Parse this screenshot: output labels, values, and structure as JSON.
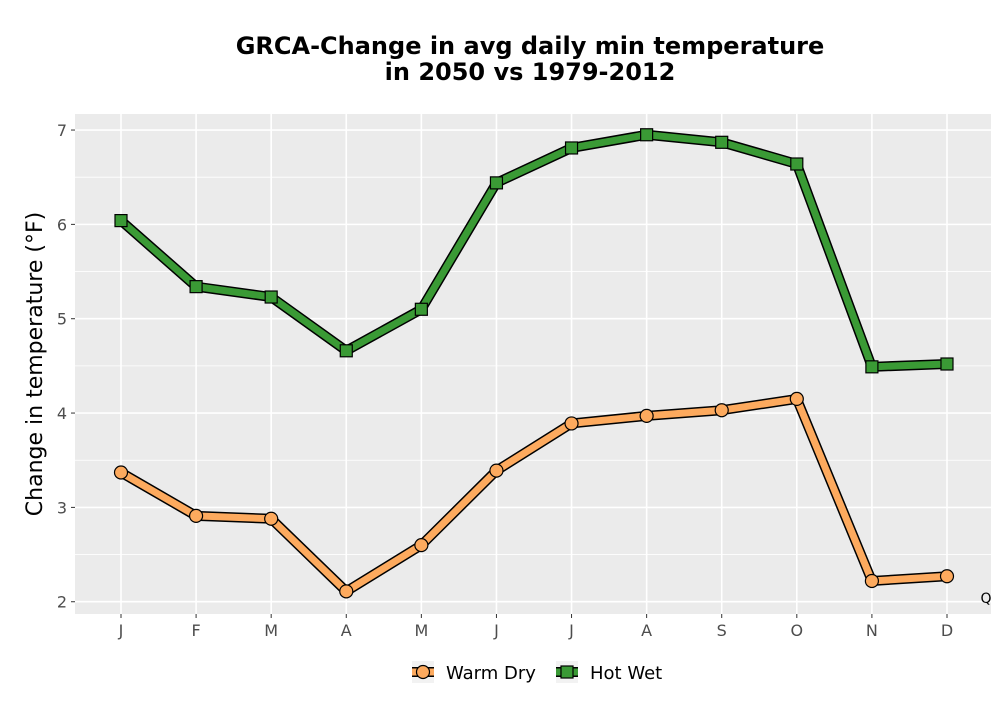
{
  "chart_data": {
    "type": "line",
    "title_line1": "GRCA-Change in avg daily min temperature",
    "title_line2": "in 2050 vs 1979-2012",
    "xlabel": "",
    "ylabel": "Change in temperature (°F)",
    "categories": [
      "J",
      "F",
      "M",
      "A",
      "M",
      "J",
      "J",
      "A",
      "S",
      "O",
      "N",
      "D"
    ],
    "ylim": [
      1.87,
      7.17
    ],
    "yticks": [
      2,
      3,
      4,
      5,
      6,
      7
    ],
    "grid": true,
    "legend_position": "bottom",
    "corner_note": "Q",
    "series": [
      {
        "name": "Warm Dry",
        "color": "#fdaa5e",
        "marker": "circle",
        "values": [
          3.37,
          2.91,
          2.88,
          2.11,
          2.6,
          3.39,
          3.89,
          3.97,
          4.03,
          4.15,
          2.22,
          2.27
        ]
      },
      {
        "name": "Hot Wet",
        "color": "#3a9a35",
        "marker": "square",
        "values": [
          6.04,
          5.34,
          5.23,
          4.66,
          5.1,
          6.44,
          6.81,
          6.95,
          6.87,
          6.64,
          4.49,
          4.52
        ]
      }
    ]
  }
}
